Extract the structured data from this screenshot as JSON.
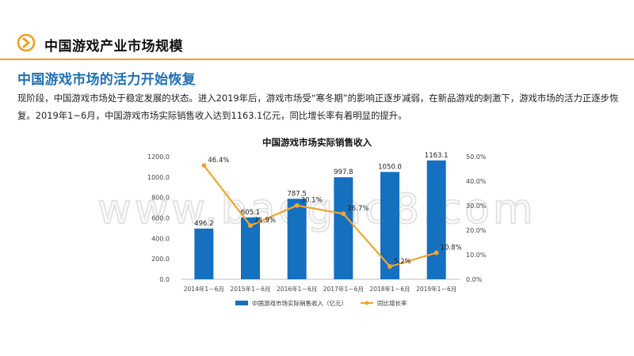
{
  "header": {
    "title": "中国游戏产业市场规模",
    "icon": "circle-arrow-right-icon",
    "accent_color": "#f0a01e"
  },
  "section": {
    "title": "中国游戏市场的活力开始恢复",
    "title_color": "#1f6fb5",
    "paragraph": "现阶段，中国游戏市场处于稳定发展的状态。进入2019年后，游戏市场受“寒冬期”的影响正逐步减弱，在新品游戏的刺激下，游戏市场的活力正逐步恢复。2019年1~6月，中国游戏市场实际销售收入达到1163.1亿元，同比增长率有着明显的提升。"
  },
  "watermark": "www.baogao8.com",
  "chart_data": {
    "type": "bar",
    "title": "中国游戏市场实际销售收入",
    "categories": [
      "2014年1－6月",
      "2015年1－6月",
      "2016年1－6月",
      "2017年1－6月",
      "2018年1－6月",
      "2019年1－6月"
    ],
    "series": [
      {
        "name": "中国游戏市场实际销售收入（亿元）",
        "type": "bar",
        "axis": "left",
        "color": "#1570c0",
        "values": [
          496.2,
          605.1,
          787.5,
          997.8,
          1050.0,
          1163.1
        ],
        "labels": [
          "496.2",
          "605.1",
          "787.5",
          "997.8",
          "1050.0",
          "1163.1"
        ]
      },
      {
        "name": "同比增长率",
        "type": "line",
        "axis": "right",
        "color": "#f0a530",
        "values": [
          46.4,
          21.9,
          30.1,
          26.7,
          5.2,
          10.8
        ],
        "labels": [
          "46.4%",
          "21.9%",
          "30.1%",
          "26.7%",
          "5.2%",
          "10.8%"
        ]
      }
    ],
    "y_left": {
      "min": 0,
      "max": 1200,
      "ticks": [
        "0.0",
        "200.0",
        "400.0",
        "600.0",
        "800.0",
        "1000.0",
        "1200.0"
      ]
    },
    "y_right": {
      "min": 0,
      "max": 50,
      "ticks": [
        "0.0%",
        "10.0%",
        "20.0%",
        "30.0%",
        "40.0%",
        "50.0%"
      ]
    },
    "grid": false,
    "legend_position": "bottom"
  }
}
